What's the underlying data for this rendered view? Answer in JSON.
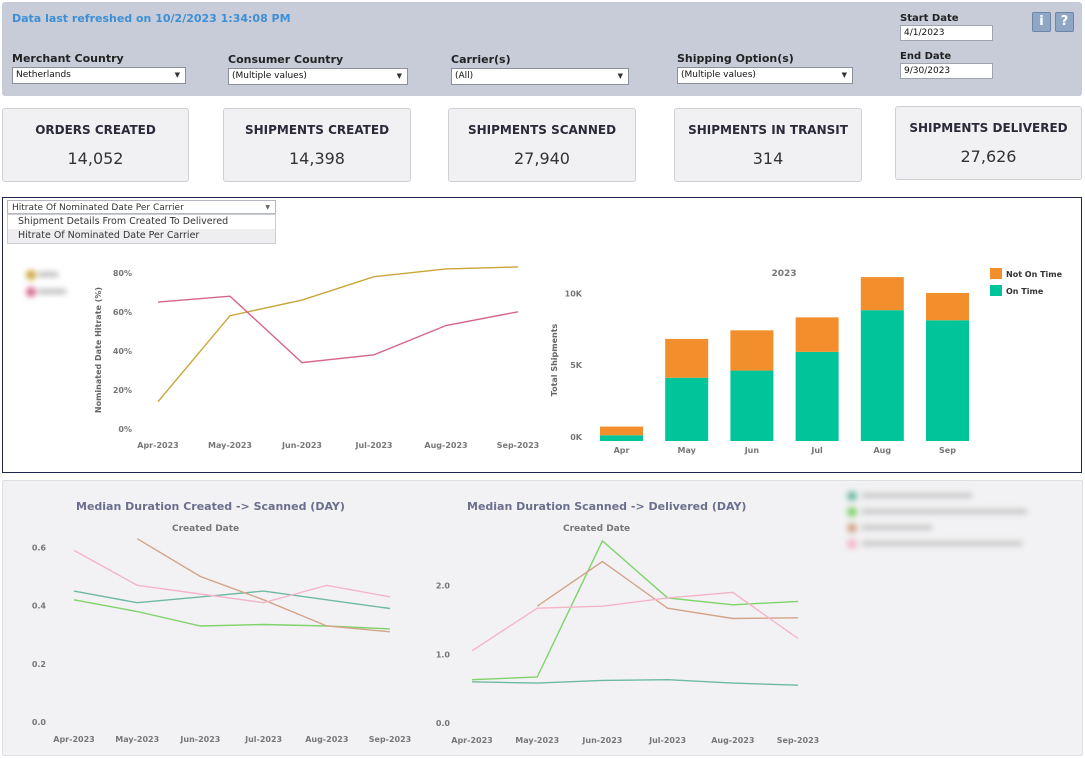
{
  "header": {
    "refresh_text": "Data last refreshed on 10/2/2023 1:34:08 PM",
    "filters": [
      {
        "label": "Merchant Country",
        "value": "Netherlands"
      },
      {
        "label": "Consumer Country",
        "value": "(Multiple values)"
      },
      {
        "label": "Carrier(s)",
        "value": "(All)"
      },
      {
        "label": "Shipping Option(s)",
        "value": "(Multiple values)"
      }
    ],
    "start_date": {
      "label": "Start Date",
      "value": "4/1/2023"
    },
    "end_date": {
      "label": "End Date",
      "value": "9/30/2023"
    },
    "info_label": "i",
    "help_label": "?"
  },
  "kpis": [
    {
      "title": "ORDERS CREATED",
      "value": "14,052"
    },
    {
      "title": "SHIPMENTS CREATED",
      "value": "14,398"
    },
    {
      "title": "SHIPMENTS SCANNED",
      "value": "27,940"
    },
    {
      "title": "SHIPMENTS IN TRANSIT",
      "value": "314"
    },
    {
      "title": "SHIPMENTS DELIVERED",
      "value": "27,626"
    }
  ],
  "view_selector": {
    "value": "Hitrate Of Nominated Date Per Carrier",
    "options": [
      "Shipment Details From Created To Delivered",
      "Hitrate Of Nominated Date Per Carrier"
    ]
  },
  "colors": {
    "gold": "#c9a53a",
    "pink": "#d4668a",
    "orange": "#f28e2b",
    "teal": "#00c49a",
    "c_blue_green": "#6fb9a1",
    "c_green": "#7fd36b",
    "c_tan": "#d4a48a",
    "c_pink": "#f5b5c8"
  },
  "chart_data": [
    {
      "type": "line",
      "title": "",
      "ylabel": "Nominated Date Hitrate (%)",
      "x": [
        "Apr-2023",
        "May-2023",
        "Jun-2023",
        "Jul-2023",
        "Aug-2023",
        "Sep-2023"
      ],
      "yticks": [
        "0%",
        "20%",
        "40%",
        "60%",
        "80%"
      ],
      "ylim": [
        0,
        85
      ],
      "series": [
        {
          "color": "#c9a53a",
          "values": [
            14,
            58,
            66,
            78,
            82,
            83
          ]
        },
        {
          "color": "#d4668a",
          "values": [
            65,
            68,
            34,
            38,
            53,
            60
          ]
        }
      ]
    },
    {
      "type": "bar",
      "title": "2023",
      "ylabel": "Total Shipments",
      "categories": [
        "Apr",
        "May",
        "Jun",
        "Jul",
        "Aug",
        "Sep"
      ],
      "yticks": [
        {
          "v": 0,
          "label": "0K"
        },
        {
          "v": 5000,
          "label": "5K"
        },
        {
          "v": 10000,
          "label": "10K"
        }
      ],
      "ylim": [
        0,
        11200
      ],
      "series": [
        {
          "name": "On Time",
          "color": "#00c49a",
          "values": [
            400,
            4400,
            4900,
            6200,
            9100,
            8400
          ]
        },
        {
          "name": "Not On Time",
          "color": "#f28e2b",
          "values": [
            600,
            2700,
            2800,
            2400,
            2300,
            1900
          ]
        }
      ],
      "legend": [
        "Not On Time",
        "On Time"
      ]
    },
    {
      "type": "line",
      "title": "Median Duration Created -> Scanned (DAY)",
      "subtitle": "Created Date",
      "x": [
        "Apr-2023",
        "May-2023",
        "Jun-2023",
        "Jul-2023",
        "Aug-2023",
        "Sep-2023"
      ],
      "yticks": [
        "0.0",
        "0.2",
        "0.4",
        "0.6"
      ],
      "ylim": [
        0,
        0.66
      ],
      "series": [
        {
          "color": "#6fb9a1",
          "values": [
            0.45,
            0.41,
            0.43,
            0.45,
            0.42,
            0.39
          ]
        },
        {
          "color": "#7fd36b",
          "values": [
            0.42,
            0.38,
            0.33,
            0.335,
            0.33,
            0.32
          ]
        },
        {
          "color": "#d4a48a",
          "values": [
            null,
            0.63,
            0.5,
            0.42,
            0.33,
            0.31
          ]
        },
        {
          "color": "#f5b5c8",
          "values": [
            0.59,
            0.47,
            0.44,
            0.41,
            0.47,
            0.43
          ]
        }
      ]
    },
    {
      "type": "line",
      "title": "Median Duration Scanned -> Delivered (DAY)",
      "subtitle": "Created Date",
      "x": [
        "Apr-2023",
        "May-2023",
        "Jun-2023",
        "Jul-2023",
        "Aug-2023",
        "Sep-2023"
      ],
      "yticks": [
        "0.0",
        "1.0",
        "2.0"
      ],
      "ylim": [
        0,
        2.75
      ],
      "series": [
        {
          "color": "#6fb9a1",
          "values": [
            0.6,
            0.58,
            0.62,
            0.63,
            0.58,
            0.55
          ]
        },
        {
          "color": "#7fd36b",
          "values": [
            0.63,
            0.67,
            2.65,
            1.82,
            1.72,
            1.77
          ]
        },
        {
          "color": "#d4a48a",
          "values": [
            null,
            1.7,
            2.35,
            1.67,
            1.52,
            1.53
          ]
        },
        {
          "color": "#f5b5c8",
          "values": [
            1.05,
            1.67,
            1.7,
            1.82,
            1.9,
            1.23
          ]
        }
      ]
    }
  ]
}
